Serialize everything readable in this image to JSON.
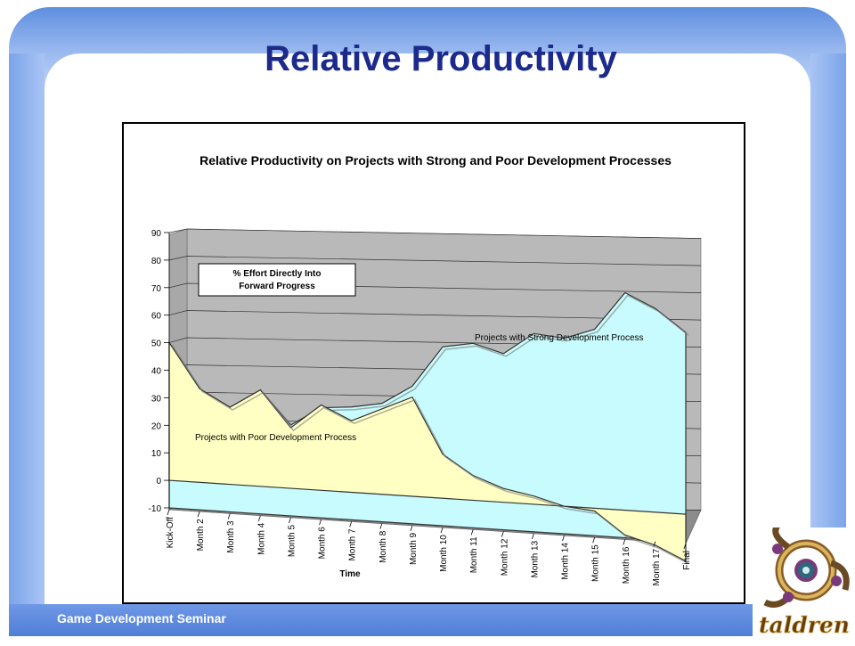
{
  "slide": {
    "title": "Relative Productivity",
    "footer": "Game Development Seminar",
    "logo_text": "taldren"
  },
  "colors": {
    "title": "#1c2a8c",
    "strong_fill": "#c8fbfd",
    "poor_fill": "#ffffc4",
    "wall": "#b9b9b9",
    "floor": "#8c8c8c"
  },
  "chart_data": {
    "type": "area",
    "title": "Relative Productivity on Projects with Strong and Poor Development Processes",
    "xlabel": "Time",
    "ylabel": "",
    "ylim": [
      -10,
      90
    ],
    "yticks": [
      -10,
      0,
      10,
      20,
      30,
      40,
      50,
      60,
      70,
      80,
      90
    ],
    "categories": [
      "Kick-Off",
      "Month 2",
      "Month 3",
      "Month 4",
      "Month 5",
      "Month 6",
      "Month 7",
      "Month 8",
      "Month 9",
      "Month 10",
      "Month 11",
      "Month 12",
      "Month 13",
      "Month 14",
      "Month 15",
      "Month 16",
      "Month 17",
      "Final"
    ],
    "series": [
      {
        "name": "Projects with Strong Development Process",
        "values": [
          50,
          34,
          28,
          35,
          23,
          30,
          31,
          33,
          40,
          55,
          57,
          54,
          62,
          61,
          65,
          79,
          74,
          66
        ]
      },
      {
        "name": "Projects with Poor Development Process",
        "values": [
          50,
          34,
          28,
          35,
          22,
          31,
          26,
          31,
          36,
          16,
          9,
          5,
          3,
          0,
          -1,
          -9,
          -12,
          -17
        ]
      }
    ],
    "annotation": "% Effort Directly Into Forward Progress",
    "grid": true,
    "style": "3d"
  }
}
